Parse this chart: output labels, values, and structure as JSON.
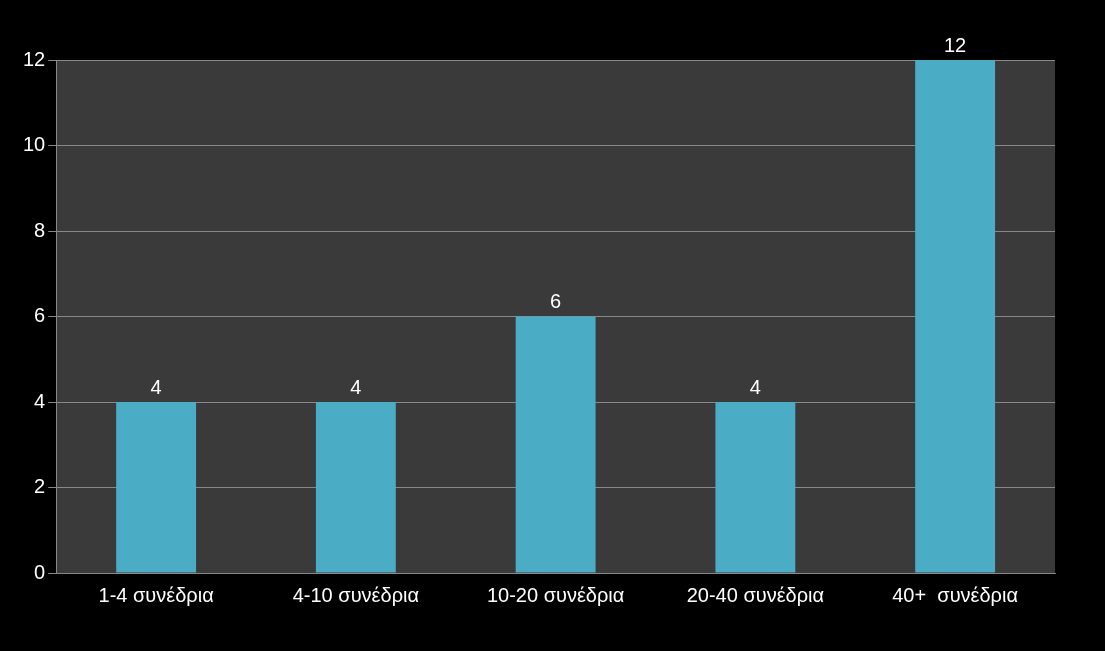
{
  "chart_data": {
    "type": "bar",
    "categories": [
      "1-4 συνέδρια",
      "4-10 συνέδρια",
      "10-20 συνέδρια",
      "20-40 συνέδρια",
      "40+  συνέδρια"
    ],
    "values": [
      4,
      4,
      6,
      4,
      12
    ],
    "color": "#4bacc6",
    "ylim": [
      0,
      12
    ],
    "yticks": [
      0,
      2,
      4,
      6,
      8,
      10,
      12
    ],
    "grid": "y",
    "data_labels": true
  }
}
